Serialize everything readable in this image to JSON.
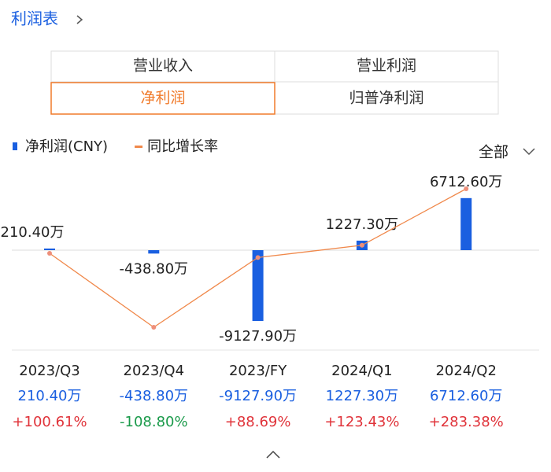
{
  "header": {
    "title": "利润表"
  },
  "tabs": [
    "营业收入",
    "营业利润",
    "净利润",
    "归普净利润"
  ],
  "filter": "全部",
  "chart_data": {
    "type": "bar",
    "categories": [
      "2023/Q3",
      "2023/Q4",
      "2023/FY",
      "2024/Q1",
      "2024/Q2"
    ],
    "series": [
      {
        "name": "净利润(CNY)",
        "type": "bar",
        "color": "#1a5fe0",
        "values": [
          210.4,
          -438.8,
          -9127.9,
          1227.3,
          6712.6
        ],
        "value_labels": [
          "210.40万",
          "-438.80万",
          "-9127.90万",
          "1227.30万",
          "6712.60万"
        ]
      },
      {
        "name": "同比增长率",
        "type": "line",
        "axis": "y2",
        "color": "#f0884a",
        "values": [
          100.61,
          -108.8,
          88.69,
          123.43,
          283.38
        ],
        "value_labels": [
          "+100.61%",
          "-108.80%",
          "+88.69%",
          "+123.43%",
          "+283.38%"
        ]
      }
    ]
  }
}
